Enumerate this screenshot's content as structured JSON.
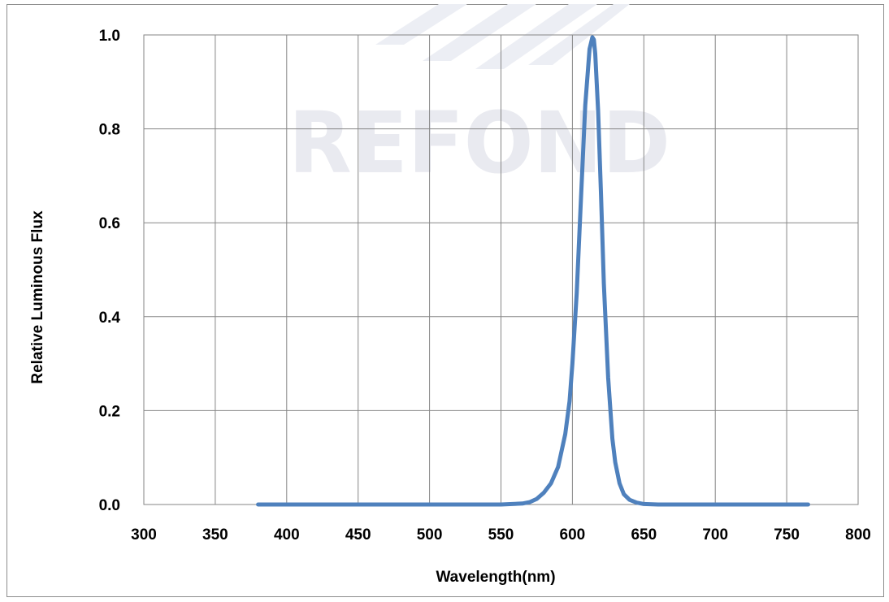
{
  "watermark": {
    "text": "REFOND"
  },
  "chart_data": {
    "type": "line",
    "title": "",
    "xlabel": "Wavelength(nm)",
    "ylabel": "Relative Luminous Flux",
    "xlim": [
      300,
      800
    ],
    "ylim": [
      0.0,
      1.0
    ],
    "x_ticks": [
      "300",
      "350",
      "400",
      "450",
      "500",
      "550",
      "600",
      "650",
      "700",
      "750",
      "800"
    ],
    "y_ticks": [
      "0.0",
      "0.2",
      "0.4",
      "0.6",
      "0.8",
      "1.0"
    ],
    "grid": true,
    "legend": "none",
    "series": [
      {
        "color": "#4f81bd",
        "x": [
          380,
          450,
          500,
          550,
          565,
          570,
          575,
          580,
          585,
          590,
          595,
          598,
          600,
          603,
          606,
          609,
          612,
          614,
          615,
          616,
          618,
          620,
          622,
          625,
          628,
          630,
          633,
          636,
          640,
          645,
          650,
          660,
          700,
          765
        ],
        "y": [
          0.0,
          0.0,
          0.0,
          0.0,
          0.002,
          0.005,
          0.012,
          0.025,
          0.045,
          0.08,
          0.15,
          0.22,
          0.3,
          0.45,
          0.65,
          0.85,
          0.97,
          0.995,
          0.99,
          0.96,
          0.84,
          0.66,
          0.47,
          0.27,
          0.14,
          0.09,
          0.045,
          0.022,
          0.01,
          0.004,
          0.001,
          0.0,
          0.0,
          0.0
        ]
      }
    ]
  }
}
